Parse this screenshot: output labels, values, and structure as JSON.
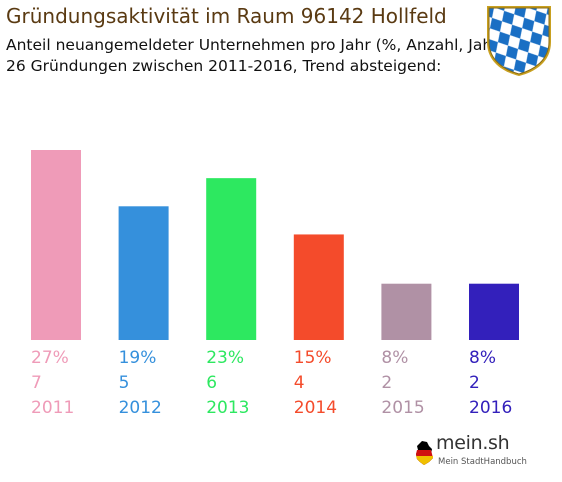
{
  "header": {
    "title": "Gründungsaktivität im Raum 96142 Hollfeld",
    "subtitle_line1": "Anteil neuangemeldeter Unternehmen pro Jahr (%, Anzahl, Jahr)",
    "subtitle_line2": "26 Gründungen zwischen 2011-2016, Trend absteigend:"
  },
  "branding": {
    "logo_text": "mein.sh",
    "tagline": "Mein StadtHandbuch",
    "crest_icon": "bavaria-crest-icon"
  },
  "chart_data": {
    "type": "bar",
    "title": "Gründungsaktivität im Raum 96142 Hollfeld",
    "categories": [
      "2011",
      "2012",
      "2013",
      "2014",
      "2015",
      "2016"
    ],
    "series": [
      {
        "values": [
          27,
          19,
          23,
          15,
          8,
          8
        ]
      }
    ],
    "counts": [
      7,
      5,
      6,
      4,
      2,
      2
    ],
    "percent_labels": [
      "27%",
      "19%",
      "23%",
      "15%",
      "8%",
      "8%"
    ],
    "count_labels": [
      "7",
      "5",
      "6",
      "4",
      "2",
      "2"
    ],
    "colors": [
      "#ef9bb8",
      "#3590dc",
      "#2de860",
      "#f44b2b",
      "#b091a5",
      "#3320bb"
    ],
    "ylim": [
      0,
      27
    ],
    "xlabel": "",
    "ylabel": "",
    "grid": false
  }
}
